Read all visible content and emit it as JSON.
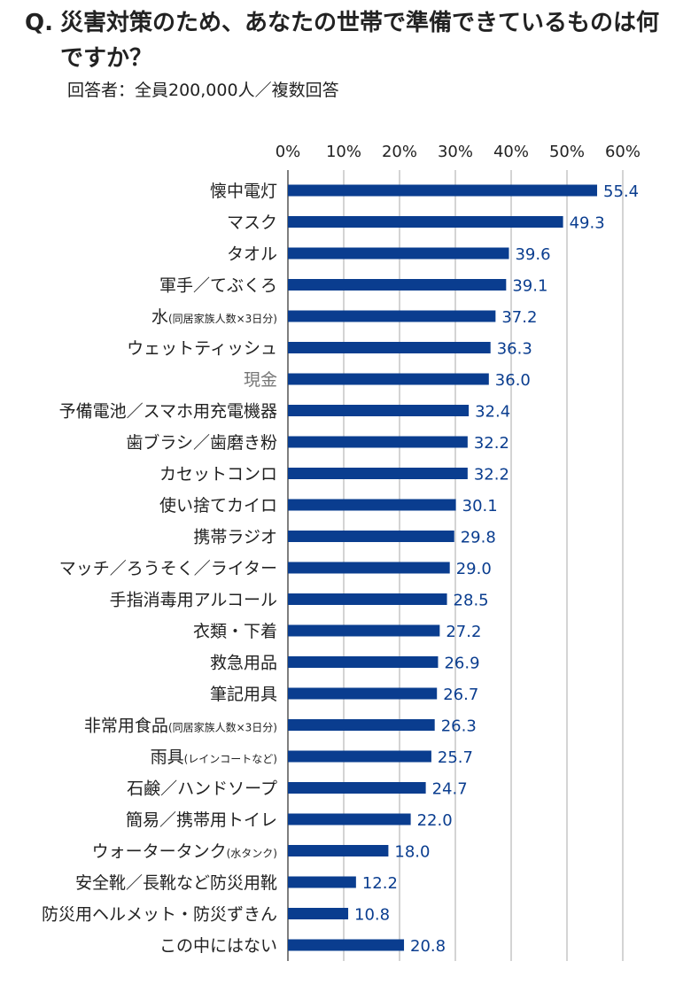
{
  "question": {
    "prefix": "Q.",
    "text": "災害対策のため、あなたの世帯で準備できているものは何ですか？"
  },
  "subtitle": "回答者：全員200,000人／複数回答",
  "colors": {
    "bar": "#0a3d8f",
    "value_label": "#0a3d8f",
    "grid": "#aaaaaa",
    "axis_text": "#222222",
    "muted_label": "#777777"
  },
  "chart_data": {
    "type": "bar",
    "orientation": "horizontal",
    "xlim": [
      0,
      60
    ],
    "x_ticks": [
      "0%",
      "10%",
      "20%",
      "30%",
      "40%",
      "50%",
      "60%"
    ],
    "grid": true,
    "categories": [
      {
        "main": "懐中電灯",
        "note": ""
      },
      {
        "main": "マスク",
        "note": ""
      },
      {
        "main": "タオル",
        "note": ""
      },
      {
        "main": "軍手／てぶくろ",
        "note": ""
      },
      {
        "main": "水",
        "note": "(同居家族人数×3日分)"
      },
      {
        "main": "ウェットティッシュ",
        "note": ""
      },
      {
        "main": "現金",
        "note": "",
        "muted": true
      },
      {
        "main": "予備電池／スマホ用充電機器",
        "note": ""
      },
      {
        "main": "歯ブラシ／歯磨き粉",
        "note": ""
      },
      {
        "main": "カセットコンロ",
        "note": ""
      },
      {
        "main": "使い捨てカイロ",
        "note": ""
      },
      {
        "main": "携帯ラジオ",
        "note": ""
      },
      {
        "main": "マッチ／ろうそく／ライター",
        "note": ""
      },
      {
        "main": "手指消毒用アルコール",
        "note": ""
      },
      {
        "main": "衣類・下着",
        "note": ""
      },
      {
        "main": "救急用品",
        "note": ""
      },
      {
        "main": "筆記用具",
        "note": ""
      },
      {
        "main": "非常用食品",
        "note": "(同居家族人数×3日分)"
      },
      {
        "main": "雨具",
        "note": "(レインコートなど)"
      },
      {
        "main": "石鹸／ハンドソープ",
        "note": ""
      },
      {
        "main": "簡易／携帯用トイレ",
        "note": ""
      },
      {
        "main": "ウォータータンク",
        "note": "(水タンク)"
      },
      {
        "main": "安全靴／長靴など防災用靴",
        "note": ""
      },
      {
        "main": "防災用ヘルメット・防災ずきん",
        "note": ""
      },
      {
        "main": "この中にはない",
        "note": ""
      }
    ],
    "values": [
      55.4,
      49.3,
      39.6,
      39.1,
      37.2,
      36.3,
      36.0,
      32.4,
      32.2,
      32.2,
      30.1,
      29.8,
      29.0,
      28.5,
      27.2,
      26.9,
      26.7,
      26.3,
      25.7,
      24.7,
      22.0,
      18.0,
      12.2,
      10.8,
      20.8
    ],
    "value_labels": [
      "55.4",
      "49.3",
      "39.6",
      "39.1",
      "37.2",
      "36.3",
      "36.0",
      "32.4",
      "32.2",
      "32.2",
      "30.1",
      "29.8",
      "29.0",
      "28.5",
      "27.2",
      "26.9",
      "26.7",
      "26.3",
      "25.7",
      "24.7",
      "22.0",
      "18.0",
      "12.2",
      "10.8",
      "20.8"
    ]
  }
}
